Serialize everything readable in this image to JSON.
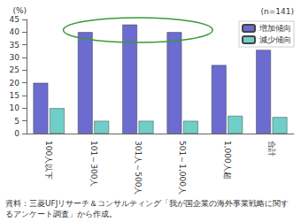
{
  "chart_data": {
    "type": "bar",
    "categories": [
      "100人以下",
      "101～300人",
      "301人～500人",
      "501～1,000人",
      "1,000人超",
      "合計"
    ],
    "series": [
      {
        "name": "増加傾向",
        "color": "#6b6bd0",
        "values": [
          20,
          40,
          43,
          40,
          27,
          33
        ]
      },
      {
        "name": "減少傾向",
        "color": "#6fcfc8",
        "values": [
          10,
          5,
          5,
          5,
          7,
          6.5
        ]
      }
    ],
    "ylabel": "(%)",
    "ylim": [
      0,
      45
    ],
    "yticks": [
      0,
      5,
      10,
      15,
      20,
      25,
      30,
      35,
      40,
      45
    ],
    "grid": false,
    "legend": "upper right",
    "annotations": [
      "(n=141)"
    ],
    "source": "資料：三菱UFJリサーチ＆コンサルティング「我が国企業の海外事業戦略に関するアンケート調査」から作成。"
  }
}
